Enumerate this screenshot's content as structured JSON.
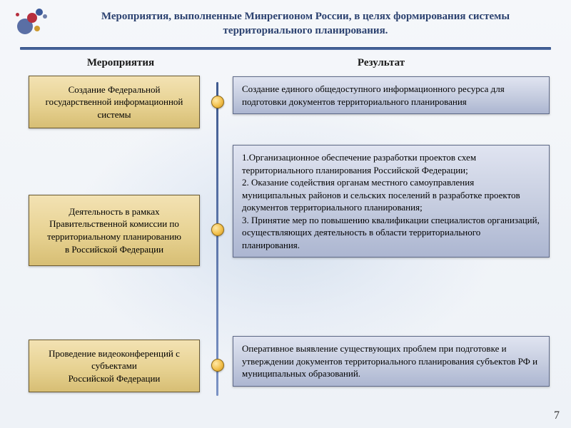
{
  "title": "Мероприятия, выполненные Минрегионом России, в целях формирования системы территориального планирования.",
  "columns": {
    "left": "Мероприятия",
    "right": "Результат"
  },
  "rows": [
    {
      "activity": "Создание Федеральной государственной информационной системы",
      "result": "Создание единого общедоступного информационного ресурса для подготовки документов территориального планирования"
    },
    {
      "activity": "Деятельность в рамках Правительственной комиссии по территориальному планированию\nв Российской Федерации",
      "result": "1.Организационное обеспечение разработки проектов схем территориального планирования Российской Федерации;\n2. Оказание содействия органам местного самоуправления муниципальных районов и сельских поселений в разработке проектов документов территориального планирования;\n3. Принятие мер по повышению квалификации специалистов организаций, осуществляющих деятельность в области территориального планирования."
    },
    {
      "activity": "Проведение видеоконференций с субъектами\nРоссийской Федерации",
      "result": "Оперативное выявление существующих проблем при подготовке и утверждении документов территориального планирования субъектов РФ и муниципальных образований."
    }
  ],
  "page_number": "7",
  "styling": {
    "left_box_bg_gradient": [
      "#f3e2b3",
      "#d7be74"
    ],
    "right_box_bg_gradient": [
      "#e0e4f1",
      "#acb6d1"
    ],
    "connector_colors": [
      "#ffe9a8",
      "#f2c04c",
      "#c8901f"
    ],
    "title_color": "#2c4270",
    "hr_gradient": [
      "#2c4a80",
      "#5c78ad"
    ],
    "vline_gradient": [
      "#3f5a8f",
      "#7a92c4"
    ],
    "font_family": "Times New Roman",
    "title_fontsize_pt": 15,
    "body_fontsize_pt": 13,
    "logo_colors": [
      "#5a6fa5",
      "#b62f3e",
      "#3b5999",
      "#cc9a2f",
      "#6e7ea8"
    ]
  }
}
